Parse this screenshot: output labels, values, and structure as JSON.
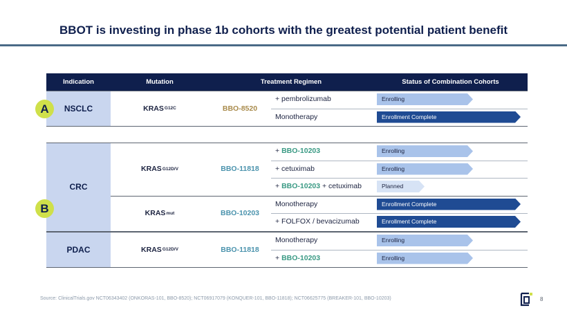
{
  "title": "BBOT is investing in phase 1b cohorts with the greatest potential patient benefit",
  "table": {
    "headers": [
      "Indication",
      "Mutation",
      "Treatment Regimen",
      "Status of Combination Cohorts"
    ]
  },
  "groups": [
    {
      "badge": "A",
      "indication": "NSCLC",
      "blocks": [
        {
          "mutation": {
            "base": "KRAS",
            "sup": "G12C"
          },
          "drug": "BBO-8520",
          "drug_color": "gold",
          "rows": [
            {
              "pre": "+ pembrolizumab",
              "hl": "",
              "post": "",
              "status": "Enrolling",
              "kind": "enrolling"
            },
            {
              "pre": "Monotherapy",
              "hl": "",
              "post": "",
              "status": "Enrollment Complete",
              "kind": "complete"
            }
          ]
        }
      ]
    },
    {
      "badge": "B",
      "indication": "CRC",
      "blocks": [
        {
          "mutation": {
            "base": "KRAS",
            "sup": "G12D/V"
          },
          "drug": "BBO-11818",
          "drug_color": "teal",
          "rows": [
            {
              "pre": "+ ",
              "hl": "BBO-10203",
              "post": "",
              "status": "Enrolling",
              "kind": "enrolling"
            },
            {
              "pre": "+ cetuximab",
              "hl": "",
              "post": "",
              "status": "Enrolling",
              "kind": "enrolling"
            },
            {
              "pre": "+ ",
              "hl": "BBO-10203",
              "post": " + cetuximab",
              "status": "Planned",
              "kind": "planned"
            }
          ]
        },
        {
          "mutation": {
            "base": "KRAS",
            "sup": "mut"
          },
          "drug": "BBO-10203",
          "drug_color": "teal",
          "rows": [
            {
              "pre": "Monotherapy",
              "hl": "",
              "post": "",
              "status": "Enrollment Complete",
              "kind": "complete"
            },
            {
              "pre": "+ FOLFOX / bevacizumab",
              "hl": "",
              "post": "",
              "status": "Enrollment Complete",
              "kind": "complete"
            }
          ]
        }
      ]
    },
    {
      "badge": "",
      "indication": "PDAC",
      "blocks": [
        {
          "mutation": {
            "base": "KRAS",
            "sup": "G12D/V"
          },
          "drug": "BBO-11818",
          "drug_color": "teal",
          "rows": [
            {
              "pre": "Monotherapy",
              "hl": "",
              "post": "",
              "status": "Enrolling",
              "kind": "enrolling"
            },
            {
              "pre": "+ ",
              "hl": "BBO-10203",
              "post": "",
              "status": "Enrolling",
              "kind": "enrolling"
            }
          ]
        }
      ]
    }
  ],
  "footer": {
    "source": "Source: ClinicalTrials.gov NCT06343402 (ONKORAS-101, BBO-8520); NCT06917079 (KONQUER-101, BBO-11818); NCT06625775 (BREAKER-101, BBO-10203)",
    "page_number": "8"
  },
  "colors": {
    "navy": "#0f1f4d",
    "indication_fill": "#c9d6ef",
    "enrolling": "#a9c3ea",
    "complete": "#1f4b93",
    "planned": "#d7e3f5",
    "badge": "#cfe04a",
    "gold": "#a98b4c",
    "teal": "#4b93ad",
    "highlight": "#3a9a84"
  }
}
